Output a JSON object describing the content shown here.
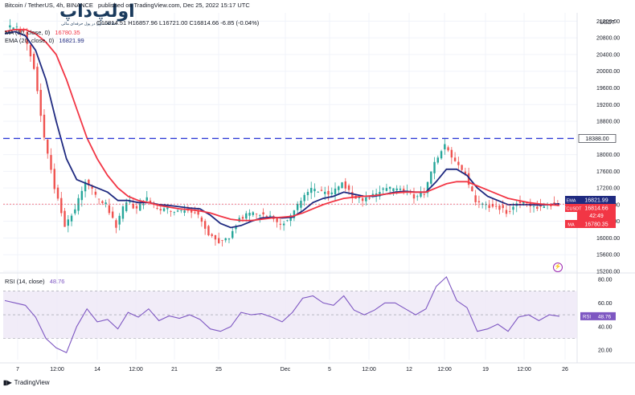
{
  "header": {
    "symbol_line": "Bitcoin / TetherUS, 4h, BINANCE",
    "published": "published on TradingView.com, Dec 25, 2022 15:17 UTC",
    "ohlc": "O16814.51 H16857.96 L16721.00 C16814.66 -6.85 (-0.04%)",
    "ma_label": "MA (50, close, 0)",
    "ma_value": "16780.35",
    "ema_label": "EMA (20, close, 0)",
    "ema_value": "16821.99",
    "logo_word": "اولپ‌داپ",
    "logo_sub": "اطلاعات اول در پول حرفه‌ای مالی"
  },
  "rsi_panel": {
    "label": "RSI (14, close)",
    "value": "48.76",
    "tag": "RSI",
    "tag_value": "48.76"
  },
  "price_tags": {
    "level": "18388.00",
    "ema_tag": "EMA",
    "ema_value": "16821.99",
    "btc_tag": "BTCUSDT",
    "btc_value": "16814.66",
    "countdown": "42:49",
    "ma_tag": "MA",
    "ma_value": "16780.35"
  },
  "axis_currency": "USDT",
  "footer": {
    "brand": "TradingView"
  },
  "colors": {
    "up": "#26a69a",
    "down": "#ef5350",
    "ema": "#1f2a80",
    "ma": "#f23645",
    "level_line": "#2f3bd6",
    "rsi_line": "#7e57c2",
    "rsi_band": "#ede7f6"
  },
  "chart_data": [
    {
      "type": "candlestick",
      "title": "Bitcoin / TetherUS, 4h, BINANCE",
      "x_tick_labels": [
        "7",
        "12:00",
        "14",
        "12:00",
        "21",
        "25",
        "Dec",
        "5",
        "12:00",
        "12",
        "12:00",
        "19",
        "12:00",
        "26"
      ],
      "y_tick_labels": [
        "21200.00",
        "20800.00",
        "20400.00",
        "20000.00",
        "19600.00",
        "19200.00",
        "18800.00",
        "18000.00",
        "17600.00",
        "17200.00",
        "16800.00",
        "16400.00",
        "16000.00",
        "15600.00",
        "15200.00"
      ],
      "ylim": [
        15200,
        21400
      ],
      "horizontal_levels": [
        18388.0
      ],
      "close_path_points": [
        {
          "x": 0,
          "y": 20950
        },
        {
          "x": 6,
          "y": 21100
        },
        {
          "x": 12,
          "y": 20900
        },
        {
          "x": 18,
          "y": 20100
        },
        {
          "x": 24,
          "y": 18400
        },
        {
          "x": 30,
          "y": 17200
        },
        {
          "x": 36,
          "y": 16300
        },
        {
          "x": 42,
          "y": 16700
        },
        {
          "x": 48,
          "y": 17400
        },
        {
          "x": 54,
          "y": 17000
        },
        {
          "x": 60,
          "y": 16800
        },
        {
          "x": 66,
          "y": 16300
        },
        {
          "x": 72,
          "y": 16900
        },
        {
          "x": 78,
          "y": 16700
        },
        {
          "x": 84,
          "y": 16950
        },
        {
          "x": 90,
          "y": 16650
        },
        {
          "x": 96,
          "y": 16700
        },
        {
          "x": 102,
          "y": 16600
        },
        {
          "x": 108,
          "y": 16700
        },
        {
          "x": 114,
          "y": 16550
        },
        {
          "x": 120,
          "y": 16100
        },
        {
          "x": 126,
          "y": 15900
        },
        {
          "x": 132,
          "y": 16000
        },
        {
          "x": 138,
          "y": 16500
        },
        {
          "x": 144,
          "y": 16550
        },
        {
          "x": 150,
          "y": 16600
        },
        {
          "x": 156,
          "y": 16500
        },
        {
          "x": 162,
          "y": 16350
        },
        {
          "x": 168,
          "y": 16500
        },
        {
          "x": 174,
          "y": 16900
        },
        {
          "x": 180,
          "y": 17150
        },
        {
          "x": 186,
          "y": 17100
        },
        {
          "x": 192,
          "y": 17050
        },
        {
          "x": 198,
          "y": 17350
        },
        {
          "x": 204,
          "y": 17000
        },
        {
          "x": 210,
          "y": 16900
        },
        {
          "x": 216,
          "y": 17000
        },
        {
          "x": 222,
          "y": 17150
        },
        {
          "x": 228,
          "y": 17200
        },
        {
          "x": 234,
          "y": 17150
        },
        {
          "x": 240,
          "y": 17000
        },
        {
          "x": 246,
          "y": 17100
        },
        {
          "x": 252,
          "y": 17800
        },
        {
          "x": 256,
          "y": 18200
        },
        {
          "x": 260,
          "y": 17800
        },
        {
          "x": 266,
          "y": 17500
        },
        {
          "x": 270,
          "y": 16850
        },
        {
          "x": 276,
          "y": 16750
        },
        {
          "x": 282,
          "y": 16800
        },
        {
          "x": 288,
          "y": 16600
        },
        {
          "x": 292,
          "y": 16850
        },
        {
          "x": 298,
          "y": 16800
        },
        {
          "x": 304,
          "y": 16750
        },
        {
          "x": 310,
          "y": 16800
        },
        {
          "x": 316,
          "y": 16815
        }
      ],
      "series": [
        {
          "name": "EMA",
          "values": [
            20900,
            20950,
            20850,
            20500,
            19800,
            18800,
            17900,
            17400,
            17300,
            17200,
            17100,
            16900,
            16900,
            16850,
            16850,
            16800,
            16780,
            16750,
            16720,
            16700,
            16550,
            16350,
            16250,
            16300,
            16400,
            16480,
            16500,
            16480,
            16500,
            16650,
            16850,
            16950,
            17000,
            17100,
            17050,
            17000,
            17000,
            17050,
            17100,
            17120,
            17100,
            17100,
            17350,
            17650,
            17650,
            17500,
            17200,
            17000,
            16900,
            16800,
            16800,
            16800,
            16790,
            16800,
            16822
          ]
        },
        {
          "name": "MA",
          "values": [
            20950,
            21000,
            21000,
            20900,
            20700,
            20400,
            19800,
            19100,
            18400,
            17900,
            17500,
            17200,
            17000,
            16900,
            16850,
            16780,
            16740,
            16700,
            16680,
            16650,
            16600,
            16520,
            16450,
            16420,
            16420,
            16450,
            16480,
            16500,
            16520,
            16600,
            16700,
            16800,
            16880,
            16950,
            16980,
            17000,
            17020,
            17050,
            17080,
            17100,
            17100,
            17100,
            17200,
            17300,
            17350,
            17350,
            17250,
            17150,
            17050,
            16950,
            16900,
            16850,
            16820,
            16800,
            16780
          ]
        }
      ]
    },
    {
      "type": "line",
      "title": "RSI (14, close)",
      "y_tick_labels": [
        "80.00",
        "60.00",
        "40.00",
        "20.00"
      ],
      "ylim": [
        12,
        84
      ],
      "band": [
        30,
        70
      ],
      "series": [
        {
          "name": "RSI",
          "values": [
            62,
            60,
            58,
            48,
            30,
            22,
            18,
            40,
            55,
            44,
            46,
            38,
            52,
            48,
            55,
            45,
            49,
            47,
            50,
            46,
            38,
            36,
            40,
            52,
            50,
            51,
            48,
            44,
            52,
            64,
            66,
            60,
            58,
            66,
            54,
            50,
            54,
            60,
            60,
            55,
            50,
            55,
            74,
            82,
            62,
            56,
            36,
            38,
            42,
            36,
            48,
            50,
            45,
            50,
            48.76
          ]
        }
      ]
    }
  ]
}
